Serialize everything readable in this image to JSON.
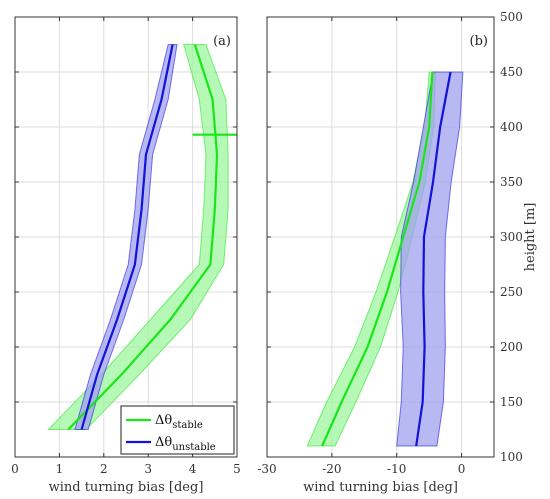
{
  "chart_data": [
    {
      "type": "line",
      "panel_label": "(a)",
      "xlabel": "wind turning bias [deg]",
      "ylabel": "",
      "xlim": [
        0,
        5
      ],
      "ylim": [
        100,
        500
      ],
      "xticks": [
        0,
        1,
        2,
        3,
        4,
        5
      ],
      "xtick_labels": [
        "0",
        "1",
        "2",
        "3",
        "4",
        "5"
      ],
      "yticks": [
        100,
        150,
        200,
        250,
        300,
        350,
        400,
        450,
        500
      ],
      "grid": true,
      "legend": {
        "placement": "bottom-right",
        "entries": [
          {
            "symbol": "Δθ",
            "sub": "stable",
            "color": "#19e619"
          },
          {
            "symbol": "Δθ",
            "sub": "unstable",
            "color": "#1212d9"
          }
        ]
      },
      "series": [
        {
          "key": "stable",
          "color": "#19e619",
          "band_color": "#9ef59e",
          "height": [
            125,
            175,
            225,
            275,
            325,
            375,
            425,
            475
          ],
          "mean": [
            1.2,
            2.4,
            3.5,
            4.4,
            4.5,
            4.55,
            4.45,
            4.05
          ],
          "lower": [
            0.75,
            1.95,
            3.05,
            4.15,
            4.25,
            4.3,
            4.15,
            3.8
          ],
          "upper": [
            1.6,
            2.8,
            3.95,
            4.7,
            4.8,
            4.8,
            4.75,
            4.3
          ]
        },
        {
          "key": "unstable",
          "color": "#1212d9",
          "band_color": "#a0a0ee",
          "height": [
            125,
            175,
            225,
            275,
            325,
            375,
            425,
            475
          ],
          "mean": [
            1.5,
            1.85,
            2.3,
            2.7,
            2.85,
            2.95,
            3.3,
            3.55
          ],
          "lower": [
            1.35,
            1.7,
            2.15,
            2.55,
            2.7,
            2.8,
            3.15,
            3.45
          ],
          "upper": [
            1.65,
            2.0,
            2.45,
            2.85,
            3.0,
            3.1,
            3.45,
            3.65
          ]
        }
      ],
      "marker": {
        "color": "#19e619",
        "x_from": 4.0,
        "x_to": 5.0,
        "y": 393
      }
    },
    {
      "type": "line",
      "panel_label": "(b)",
      "xlabel": "wind turning bias [deg]",
      "ylabel": "height [m]",
      "xlim": [
        -30,
        5
      ],
      "ylim": [
        100,
        500
      ],
      "xticks": [
        -30,
        -20,
        -10,
        0
      ],
      "xtick_labels": [
        "-30",
        "-20",
        "-10",
        "0"
      ],
      "yticks": [
        100,
        150,
        200,
        250,
        300,
        350,
        400,
        450,
        500
      ],
      "ytick_labels": [
        "100",
        "150",
        "200",
        "250",
        "300",
        "350",
        "400",
        "450",
        "500"
      ],
      "grid": true,
      "series": [
        {
          "key": "stable",
          "color": "#19e619",
          "band_color": "#9ef59e",
          "height": [
            110,
            150,
            200,
            250,
            300,
            350,
            400,
            450
          ],
          "mean": [
            -21.5,
            -18.5,
            -14.5,
            -11.5,
            -9.0,
            -6.5,
            -5.0,
            -4.5
          ],
          "lower": [
            -23.8,
            -20.8,
            -16.5,
            -13.2,
            -10.3,
            -7.5,
            -5.7,
            -5.0
          ],
          "upper": [
            -19.5,
            -16.3,
            -12.5,
            -9.8,
            -7.6,
            -5.6,
            -4.3,
            -4.0
          ]
        },
        {
          "key": "unstable",
          "color": "#1212d9",
          "band_color": "#a0a0ee",
          "height": [
            110,
            150,
            200,
            250,
            300,
            350,
            400,
            450
          ],
          "mean": [
            -7.0,
            -6.0,
            -5.7,
            -5.9,
            -5.8,
            -4.4,
            -3.3,
            -1.7
          ],
          "lower": [
            -10.0,
            -9.3,
            -9.0,
            -9.4,
            -9.3,
            -7.4,
            -5.9,
            -4.4
          ],
          "upper": [
            -3.8,
            -2.8,
            -2.5,
            -2.6,
            -2.5,
            -1.6,
            -0.3,
            0.2
          ]
        }
      ]
    }
  ]
}
